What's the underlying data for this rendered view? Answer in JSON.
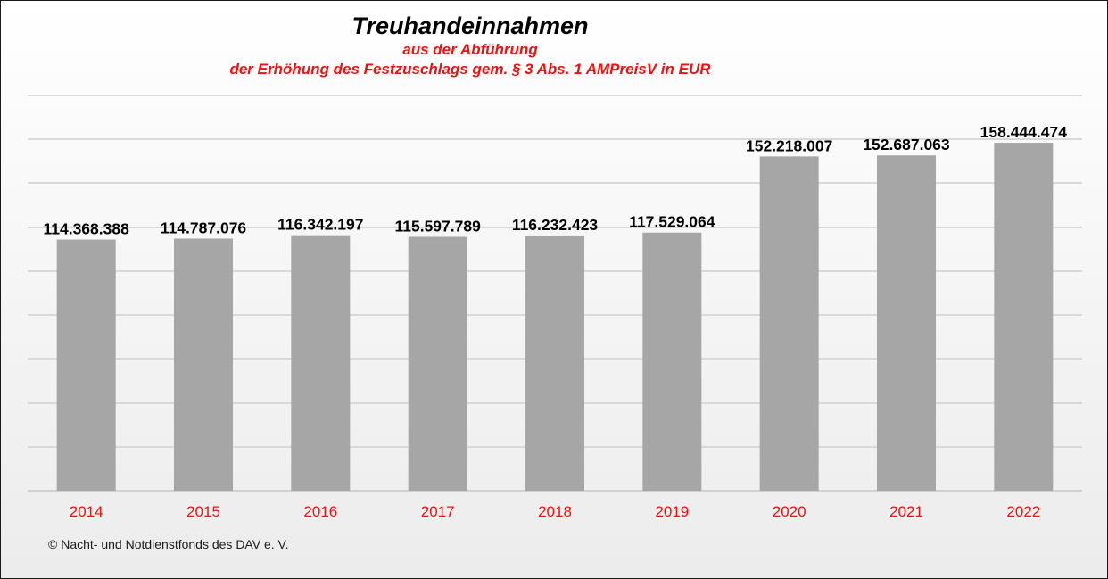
{
  "chart_data": {
    "type": "bar",
    "title": "Treuhandeinnahmen",
    "subtitle_line1": "aus der Abführung",
    "subtitle_line2": "der Erhöhung des Festzuschlags gem. § 3 Abs. 1 AMPreisV in EUR",
    "categories": [
      "2014",
      "2015",
      "2016",
      "2017",
      "2018",
      "2019",
      "2020",
      "2021",
      "2022"
    ],
    "values": [
      114368388,
      114787076,
      116342197,
      115597789,
      116232423,
      117529064,
      152218007,
      152687063,
      158444474
    ],
    "value_labels": [
      "114.368.388",
      "114.787.076",
      "116.342.197",
      "115.597.789",
      "116.232.423",
      "117.529.064",
      "152.218.007",
      "152.687.063",
      "158.444.474"
    ],
    "ylim": [
      0,
      180000000
    ],
    "grid": true,
    "bar_color": "#a6a6a6",
    "tick_label_color": "#ee1111",
    "subtitle_color": "#ee1111"
  },
  "footer": "© Nacht- und Notdienstfonds  des DAV e. V."
}
